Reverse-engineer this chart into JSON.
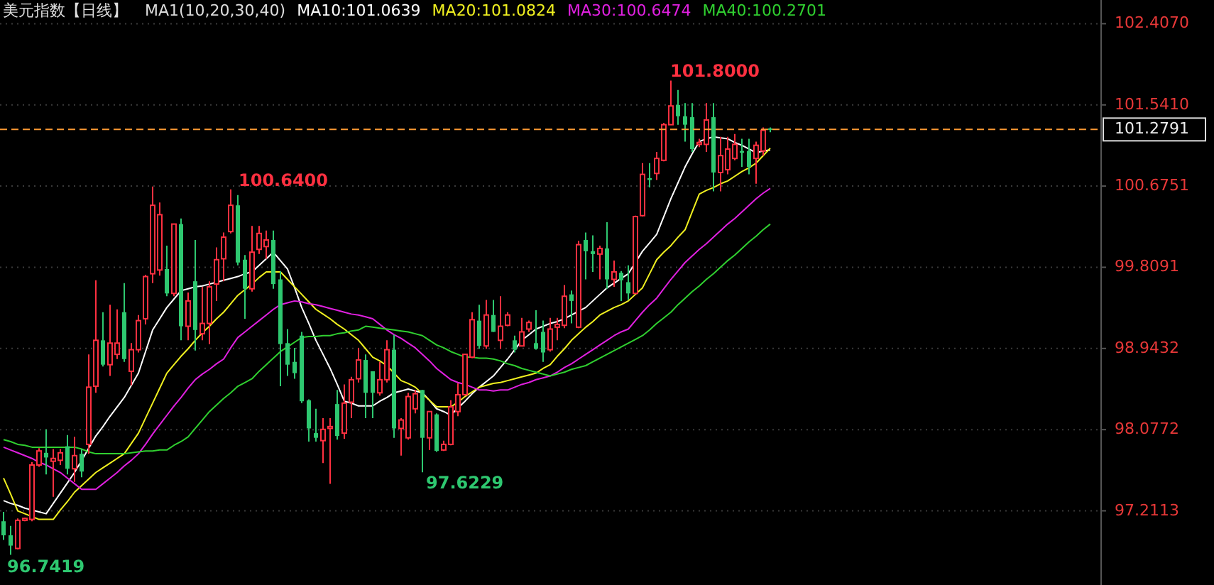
{
  "chart_data": {
    "type": "candlestick",
    "title": "美元指数【日线】",
    "legend_title": "MA1(10,20,30,40)",
    "categories": [
      null,
      null,
      null,
      null,
      null,
      null,
      null,
      null,
      null,
      null,
      null,
      null,
      null,
      null,
      null,
      null,
      null,
      null,
      null,
      null,
      null,
      null,
      null,
      null,
      null,
      null,
      null,
      null,
      null,
      null,
      null,
      null,
      null,
      null,
      null,
      null,
      null,
      null,
      null,
      null,
      null,
      null,
      null,
      null,
      null,
      null,
      null,
      null,
      null,
      null,
      null,
      null,
      null,
      null,
      null,
      null,
      null,
      null,
      null,
      null,
      null,
      null,
      null,
      null,
      null,
      null,
      null,
      null,
      null,
      null,
      null,
      null,
      null,
      null,
      null,
      null,
      null,
      null,
      null,
      null,
      null,
      null,
      null,
      null,
      null,
      null,
      null,
      null,
      null,
      null,
      null,
      null,
      null,
      null,
      null,
      null,
      null,
      null,
      null,
      null,
      null,
      null,
      null,
      null,
      null,
      null,
      null,
      null,
      null
    ],
    "ohlc": [
      [
        97.1,
        97.2,
        96.9,
        96.95
      ],
      [
        96.95,
        97.05,
        96.7419,
        96.84
      ],
      [
        96.81,
        97.13,
        96.8,
        97.11
      ],
      [
        97.11,
        97.14,
        97.1,
        97.13
      ],
      [
        97.12,
        97.73,
        97.1,
        97.7
      ],
      [
        97.7,
        97.88,
        97.68,
        97.85
      ],
      [
        97.83,
        98.08,
        97.6,
        97.78
      ],
      [
        97.74,
        97.87,
        97.36,
        97.77
      ],
      [
        97.75,
        97.87,
        97.7,
        97.83
      ],
      [
        97.9,
        98.02,
        97.6,
        97.66
      ],
      [
        97.66,
        98.0,
        97.52,
        97.8
      ],
      [
        97.82,
        97.87,
        97.57,
        97.63
      ],
      [
        97.92,
        98.88,
        97.82,
        98.53
      ],
      [
        98.54,
        99.67,
        98.47,
        99.03
      ],
      [
        99.03,
        99.33,
        98.75,
        98.77
      ],
      [
        98.77,
        99.41,
        98.65,
        99.0
      ],
      [
        98.88,
        99.36,
        98.83,
        99.0
      ],
      [
        99.33,
        99.64,
        98.8,
        98.83
      ],
      [
        98.7,
        99.0,
        98.55,
        98.93
      ],
      [
        98.93,
        99.3,
        98.9,
        99.24
      ],
      [
        99.26,
        99.73,
        99.2,
        99.71
      ],
      [
        99.74,
        100.67,
        99.64,
        100.47
      ],
      [
        99.78,
        100.5,
        99.72,
        100.37
      ],
      [
        99.79,
        100.04,
        99.5,
        99.53
      ],
      [
        99.53,
        100.27,
        99.5,
        100.27
      ],
      [
        100.27,
        100.33,
        99.03,
        99.18
      ],
      [
        99.18,
        99.54,
        99.03,
        99.45
      ],
      [
        99.66,
        100.1,
        98.92,
        99.14
      ],
      [
        99.1,
        99.6,
        99.03,
        99.21
      ],
      [
        99.21,
        99.66,
        98.99,
        99.6
      ],
      [
        99.63,
        100.02,
        99.45,
        99.89
      ],
      [
        99.9,
        100.18,
        99.66,
        100.13
      ],
      [
        100.19,
        100.64,
        100.17,
        100.47
      ],
      [
        100.47,
        100.58,
        99.83,
        99.86
      ],
      [
        99.89,
        99.94,
        99.26,
        99.58
      ],
      [
        99.58,
        100.25,
        99.55,
        99.97
      ],
      [
        100.0,
        100.25,
        99.95,
        100.17
      ],
      [
        100.03,
        100.2,
        99.9,
        100.1
      ],
      [
        100.1,
        100.2,
        99.58,
        99.63
      ],
      [
        99.68,
        99.77,
        98.54,
        98.99
      ],
      [
        99.0,
        99.15,
        98.65,
        98.77
      ],
      [
        98.8,
        98.95,
        98.62,
        98.68
      ],
      [
        99.08,
        99.12,
        98.36,
        98.38
      ],
      [
        98.39,
        98.4,
        97.95,
        98.09
      ],
      [
        98.04,
        98.3,
        97.95,
        97.99
      ],
      [
        97.96,
        98.2,
        97.72,
        98.08
      ],
      [
        98.09,
        98.2,
        97.5,
        98.11
      ],
      [
        98.35,
        98.5,
        97.97,
        98.01
      ],
      [
        98.04,
        98.56,
        97.98,
        98.36
      ],
      [
        98.37,
        98.64,
        98.2,
        98.61
      ],
      [
        98.62,
        98.95,
        98.58,
        98.82
      ],
      [
        98.82,
        98.88,
        98.2,
        98.47
      ],
      [
        98.7,
        98.7,
        98.2,
        98.47
      ],
      [
        98.47,
        98.8,
        98.44,
        98.61
      ],
      [
        98.61,
        99.03,
        98.58,
        98.93
      ],
      [
        98.93,
        99.09,
        97.99,
        98.09
      ],
      [
        98.09,
        98.2,
        97.8,
        98.18
      ],
      [
        97.99,
        98.47,
        97.97,
        98.43
      ],
      [
        98.3,
        98.5,
        98.25,
        98.46
      ],
      [
        98.5,
        98.5,
        97.6229,
        97.99
      ],
      [
        97.99,
        98.27,
        97.86,
        98.27
      ],
      [
        98.24,
        98.25,
        97.84,
        97.85
      ],
      [
        97.86,
        97.96,
        97.85,
        97.92
      ],
      [
        97.92,
        98.39,
        97.91,
        98.32
      ],
      [
        98.27,
        98.57,
        98.22,
        98.45
      ],
      [
        98.45,
        98.88,
        98.44,
        98.88
      ],
      [
        98.85,
        99.33,
        98.84,
        99.25
      ],
      [
        99.24,
        99.41,
        98.94,
        98.97
      ],
      [
        98.97,
        99.46,
        98.94,
        99.3
      ],
      [
        99.3,
        99.46,
        99.12,
        99.12
      ],
      [
        99.03,
        99.5,
        98.94,
        99.18
      ],
      [
        99.19,
        99.33,
        99.18,
        99.3
      ],
      [
        99.03,
        99.08,
        98.9,
        98.93
      ],
      [
        98.97,
        99.27,
        98.97,
        99.12
      ],
      [
        99.15,
        99.24,
        99.12,
        99.22
      ],
      [
        99.0,
        99.35,
        98.93,
        98.94
      ],
      [
        99.12,
        99.24,
        98.8,
        98.9
      ],
      [
        98.93,
        99.27,
        98.91,
        99.15
      ],
      [
        99.17,
        99.27,
        99.03,
        99.2
      ],
      [
        99.19,
        99.62,
        99.16,
        99.5
      ],
      [
        99.52,
        99.56,
        99.21,
        99.45
      ],
      [
        99.17,
        100.09,
        99.16,
        100.05
      ],
      [
        100.1,
        100.18,
        99.68,
        99.98
      ],
      [
        99.98,
        100.15,
        99.76,
        99.95
      ],
      [
        99.95,
        100.04,
        99.68,
        100.01
      ],
      [
        100.01,
        100.29,
        99.58,
        99.68
      ],
      [
        99.68,
        99.88,
        99.6,
        99.76
      ],
      [
        99.75,
        99.77,
        99.45,
        99.67
      ],
      [
        99.65,
        99.83,
        99.46,
        99.53
      ],
      [
        99.53,
        100.36,
        99.53,
        100.35
      ],
      [
        100.36,
        100.92,
        100.35,
        100.8
      ],
      [
        100.76,
        100.92,
        100.66,
        100.74
      ],
      [
        100.81,
        101.04,
        100.74,
        100.97
      ],
      [
        100.95,
        101.35,
        100.94,
        101.33
      ],
      [
        101.33,
        101.8,
        101.33,
        101.53
      ],
      [
        101.54,
        101.7,
        101.33,
        101.42
      ],
      [
        101.42,
        101.56,
        101.15,
        101.33
      ],
      [
        101.41,
        101.56,
        101.04,
        101.07
      ],
      [
        101.12,
        101.18,
        101.09,
        101.14
      ],
      [
        101.12,
        101.56,
        101.04,
        101.38
      ],
      [
        101.41,
        101.56,
        100.62,
        100.82
      ],
      [
        100.82,
        101.2,
        100.62,
        101.0
      ],
      [
        100.85,
        101.2,
        100.8,
        101.07
      ],
      [
        100.97,
        101.23,
        100.95,
        101.12
      ],
      [
        101.05,
        101.18,
        100.88,
        101.03
      ],
      [
        101.05,
        101.18,
        100.8,
        100.88
      ],
      [
        100.97,
        101.15,
        100.7,
        101.11
      ],
      [
        101.05,
        101.3,
        101.0,
        101.27
      ],
      [
        101.29,
        101.3,
        101.25,
        101.2791
      ]
    ],
    "series": [
      {
        "name": "MA10:101.0639",
        "color": "#ffffff",
        "type": "line",
        "values": [
          97.32,
          97.29,
          97.27,
          97.24,
          97.22,
          97.2,
          97.18,
          97.29,
          97.4,
          97.51,
          97.62,
          97.75,
          97.88,
          98.01,
          98.11,
          98.22,
          98.32,
          98.42,
          98.55,
          98.68,
          98.91,
          99.14,
          99.26,
          99.38,
          99.47,
          99.56,
          99.58,
          99.6,
          99.61,
          99.63,
          99.65,
          99.67,
          99.69,
          99.71,
          99.74,
          99.76,
          99.83,
          99.9,
          99.97,
          99.88,
          99.79,
          99.59,
          99.38,
          99.21,
          99.03,
          98.88,
          98.73,
          98.56,
          98.38,
          98.36,
          98.33,
          98.33,
          98.33,
          98.38,
          98.42,
          98.47,
          98.49,
          98.51,
          98.49,
          98.47,
          98.39,
          98.3,
          98.27,
          98.23,
          98.31,
          98.38,
          98.46,
          98.53,
          98.59,
          98.65,
          98.74,
          98.83,
          98.93,
          99.03,
          99.09,
          99.15,
          99.18,
          99.21,
          99.23,
          99.26,
          99.3,
          99.34,
          99.38,
          99.45,
          99.52,
          99.59,
          99.64,
          99.69,
          99.74,
          99.86,
          99.98,
          100.07,
          100.16,
          100.35,
          100.54,
          100.71,
          100.88,
          101.02,
          101.15,
          101.18,
          101.2,
          101.19,
          101.18,
          101.14,
          101.11,
          101.07,
          101.03,
          101.05,
          101.06
        ]
      },
      {
        "name": "MA20:101.0824",
        "color": "#f0f020",
        "type": "line",
        "values": [
          97.56,
          97.39,
          97.21,
          97.18,
          97.15,
          97.12,
          97.12,
          97.12,
          97.22,
          97.31,
          97.41,
          97.48,
          97.55,
          97.62,
          97.67,
          97.72,
          97.77,
          97.82,
          97.93,
          98.04,
          98.2,
          98.36,
          98.52,
          98.68,
          98.77,
          98.86,
          98.94,
          99.03,
          99.11,
          99.18,
          99.26,
          99.33,
          99.42,
          99.51,
          99.57,
          99.63,
          99.7,
          99.76,
          99.76,
          99.76,
          99.68,
          99.6,
          99.52,
          99.44,
          99.36,
          99.31,
          99.26,
          99.2,
          99.15,
          99.09,
          99.03,
          98.94,
          98.85,
          98.81,
          98.76,
          98.68,
          98.6,
          98.57,
          98.53,
          98.46,
          98.39,
          98.32,
          98.32,
          98.32,
          98.37,
          98.43,
          98.48,
          98.53,
          98.55,
          98.57,
          98.58,
          98.6,
          98.62,
          98.64,
          98.66,
          98.68,
          98.73,
          98.77,
          98.86,
          98.94,
          99.03,
          99.1,
          99.17,
          99.23,
          99.3,
          99.34,
          99.38,
          99.41,
          99.45,
          99.52,
          99.59,
          99.74,
          99.89,
          99.97,
          100.04,
          100.13,
          100.21,
          100.4,
          100.59,
          100.63,
          100.66,
          100.7,
          100.73,
          100.78,
          100.83,
          100.87,
          100.92,
          101.0,
          101.08
        ]
      },
      {
        "name": "MA30:100.6474",
        "color": "#e020e0",
        "type": "line",
        "values": [
          97.89,
          97.86,
          97.83,
          97.8,
          97.77,
          97.73,
          97.7,
          97.66,
          97.62,
          97.56,
          97.5,
          97.44,
          97.44,
          97.44,
          97.5,
          97.56,
          97.62,
          97.69,
          97.75,
          97.82,
          97.92,
          98.03,
          98.13,
          98.23,
          98.33,
          98.42,
          98.52,
          98.61,
          98.67,
          98.72,
          98.78,
          98.83,
          98.95,
          99.06,
          99.12,
          99.18,
          99.24,
          99.3,
          99.36,
          99.41,
          99.43,
          99.45,
          99.44,
          99.42,
          99.41,
          99.39,
          99.37,
          99.35,
          99.33,
          99.31,
          99.3,
          99.28,
          99.26,
          99.2,
          99.14,
          99.09,
          99.05,
          99.0,
          98.95,
          98.88,
          98.81,
          98.73,
          98.67,
          98.61,
          98.58,
          98.56,
          98.53,
          98.5,
          98.5,
          98.49,
          98.5,
          98.5,
          98.53,
          98.56,
          98.58,
          98.61,
          98.63,
          98.65,
          98.69,
          98.74,
          98.78,
          98.83,
          98.88,
          98.93,
          98.98,
          99.03,
          99.08,
          99.12,
          99.15,
          99.24,
          99.33,
          99.41,
          99.48,
          99.58,
          99.68,
          99.77,
          99.86,
          99.93,
          100.0,
          100.06,
          100.13,
          100.2,
          100.27,
          100.33,
          100.4,
          100.47,
          100.54,
          100.6,
          100.65
        ]
      },
      {
        "name": "MA40:100.2701",
        "color": "#30d030",
        "type": "line",
        "values": [
          97.97,
          97.95,
          97.92,
          97.91,
          97.89,
          97.89,
          97.89,
          97.89,
          97.89,
          97.89,
          97.89,
          97.87,
          97.84,
          97.82,
          97.82,
          97.82,
          97.82,
          97.82,
          97.83,
          97.84,
          97.85,
          97.85,
          97.86,
          97.86,
          97.91,
          97.95,
          98.0,
          98.09,
          98.18,
          98.27,
          98.34,
          98.41,
          98.47,
          98.54,
          98.58,
          98.62,
          98.7,
          98.77,
          98.84,
          98.91,
          98.96,
          99.01,
          99.06,
          99.07,
          99.07,
          99.08,
          99.08,
          99.1,
          99.11,
          99.13,
          99.14,
          99.18,
          99.17,
          99.16,
          99.15,
          99.14,
          99.13,
          99.12,
          99.1,
          99.08,
          99.03,
          98.98,
          98.95,
          98.91,
          98.88,
          98.85,
          98.85,
          98.84,
          98.84,
          98.83,
          98.81,
          98.78,
          98.76,
          98.73,
          98.71,
          98.69,
          98.67,
          98.65,
          98.67,
          98.69,
          98.72,
          98.74,
          98.76,
          98.8,
          98.84,
          98.88,
          98.92,
          98.96,
          99.0,
          99.04,
          99.08,
          99.14,
          99.21,
          99.27,
          99.33,
          99.41,
          99.48,
          99.55,
          99.61,
          99.68,
          99.74,
          99.81,
          99.88,
          99.94,
          100.01,
          100.08,
          100.14,
          100.21,
          100.27
        ]
      }
    ],
    "ylim": [
      96.42,
      102.66
    ],
    "yticks": [
      {
        "value": 102.407,
        "label": "102.4070"
      },
      {
        "value": 101.541,
        "label": "101.5410"
      },
      {
        "value": 100.6751,
        "label": "100.6751"
      },
      {
        "value": 99.8091,
        "label": "99.8091"
      },
      {
        "value": 98.9432,
        "label": "98.9432"
      },
      {
        "value": 98.0772,
        "label": "98.0772"
      },
      {
        "value": 97.2113,
        "label": "97.2113"
      }
    ],
    "grid": "y",
    "tick_labels": "y",
    "ref_lines": [
      {
        "axis": "y",
        "value": 101.2791,
        "label": "101.2791",
        "color": "#ff9933",
        "line_style": "dashed"
      }
    ],
    "annotations": [
      "101.8000",
      "100.6400",
      "97.6229",
      "96.7419"
    ]
  }
}
